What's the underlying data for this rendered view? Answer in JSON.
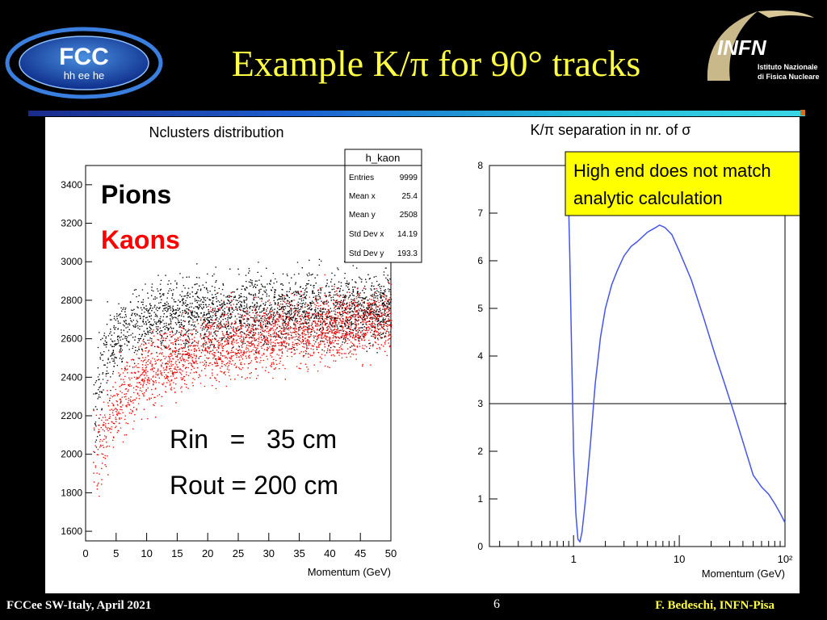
{
  "slide": {
    "title": "Example K/π for 90° tracks",
    "footer_left": "FCCee SW-Italy, April 2021",
    "footer_right": "F. Bedeschi, INFN-Pisa",
    "page_number": "6"
  },
  "logos": {
    "fcc_line1": "FCC",
    "fcc_line2": "hh ee he",
    "infn_name": "INFN",
    "infn_sub1": "Istituto Nazionale",
    "infn_sub2": "di Fisica Nucleare"
  },
  "colors": {
    "title": "#ffff44",
    "pions": "#000000",
    "kaons": "#ff0000",
    "curve": "#4455ee",
    "callout_bg": "#ffff00"
  },
  "chart_data": [
    {
      "type": "scatter",
      "title": "Nclusters distribution",
      "xlabel": "Momentum (GeV)",
      "ylabel": "",
      "xlim": [
        0,
        50
      ],
      "ylim": [
        1550,
        3500
      ],
      "x_ticks": [
        0,
        5,
        10,
        15,
        20,
        25,
        30,
        35,
        40,
        45,
        50
      ],
      "y_ticks": [
        1600,
        1800,
        2000,
        2200,
        2400,
        2600,
        2800,
        3000,
        3200,
        3400
      ],
      "series": [
        {
          "name": "Pions",
          "color": "#000000",
          "trend": {
            "x": [
              1.5,
              2,
              3,
              4,
              5,
              7,
              10,
              15,
              20,
              30,
              40,
              50
            ],
            "y": [
              2250,
              2350,
              2460,
              2540,
              2600,
              2650,
              2690,
              2715,
              2730,
              2745,
              2755,
              2760
            ]
          },
          "spread": 90
        },
        {
          "name": "Kaons",
          "color": "#ff0000",
          "trend": {
            "x": [
              1.5,
              2,
              3,
              4,
              5,
              7,
              10,
              15,
              20,
              30,
              40,
              50
            ],
            "y": [
              2020,
              2040,
              2100,
              2170,
              2240,
              2330,
              2420,
              2500,
              2560,
              2620,
              2660,
              2690
            ]
          },
          "spread": 90
        }
      ],
      "legend": [
        "Pions",
        "Kaons"
      ],
      "stats_box": {
        "name": "h_kaon",
        "rows": [
          {
            "label": "Entries",
            "value": "9999"
          },
          {
            "label": "Mean x",
            "value": "25.4"
          },
          {
            "label": "Mean y",
            "value": "2508"
          },
          {
            "label": "Std Dev x",
            "value": "14.19"
          },
          {
            "label": "Std Dev y",
            "value": "193.3"
          }
        ]
      },
      "annotation": {
        "line1": "Rin   =   35 cm",
        "line2": "Rout = 200 cm"
      }
    },
    {
      "type": "line",
      "title": "K/π separation in nr. of σ",
      "xlabel": "Momentum (GeV)",
      "ylabel": "",
      "x_scale": "log",
      "xlim": [
        0.16,
        100
      ],
      "ylim": [
        0,
        8
      ],
      "x_tick_labels": [
        "1",
        "10",
        "10²"
      ],
      "y_ticks": [
        0,
        1,
        2,
        3,
        4,
        5,
        6,
        7,
        8
      ],
      "threshold": 3,
      "series": [
        {
          "color": "#4455ee",
          "x": [
            0.88,
            0.92,
            0.96,
            1.0,
            1.05,
            1.1,
            1.15,
            1.2,
            1.3,
            1.45,
            1.6,
            1.8,
            2.0,
            2.3,
            2.6,
            3.0,
            3.5,
            4.0,
            5.0,
            6.0,
            6.5,
            7.3,
            8.5,
            10,
            13,
            17,
            22,
            27,
            33,
            40,
            50,
            60,
            70,
            80,
            90,
            100
          ],
          "y": [
            8.0,
            6.2,
            4.0,
            2.0,
            0.7,
            0.15,
            0.1,
            0.3,
            1.0,
            2.2,
            3.4,
            4.4,
            5.0,
            5.5,
            5.8,
            6.1,
            6.3,
            6.4,
            6.6,
            6.7,
            6.75,
            6.7,
            6.55,
            6.2,
            5.6,
            4.8,
            4.0,
            3.4,
            2.8,
            2.2,
            1.5,
            1.25,
            1.1,
            0.9,
            0.7,
            0.5
          ]
        }
      ],
      "callout": {
        "line1": "High end does not match",
        "line2": "analytic calculation"
      }
    }
  ]
}
